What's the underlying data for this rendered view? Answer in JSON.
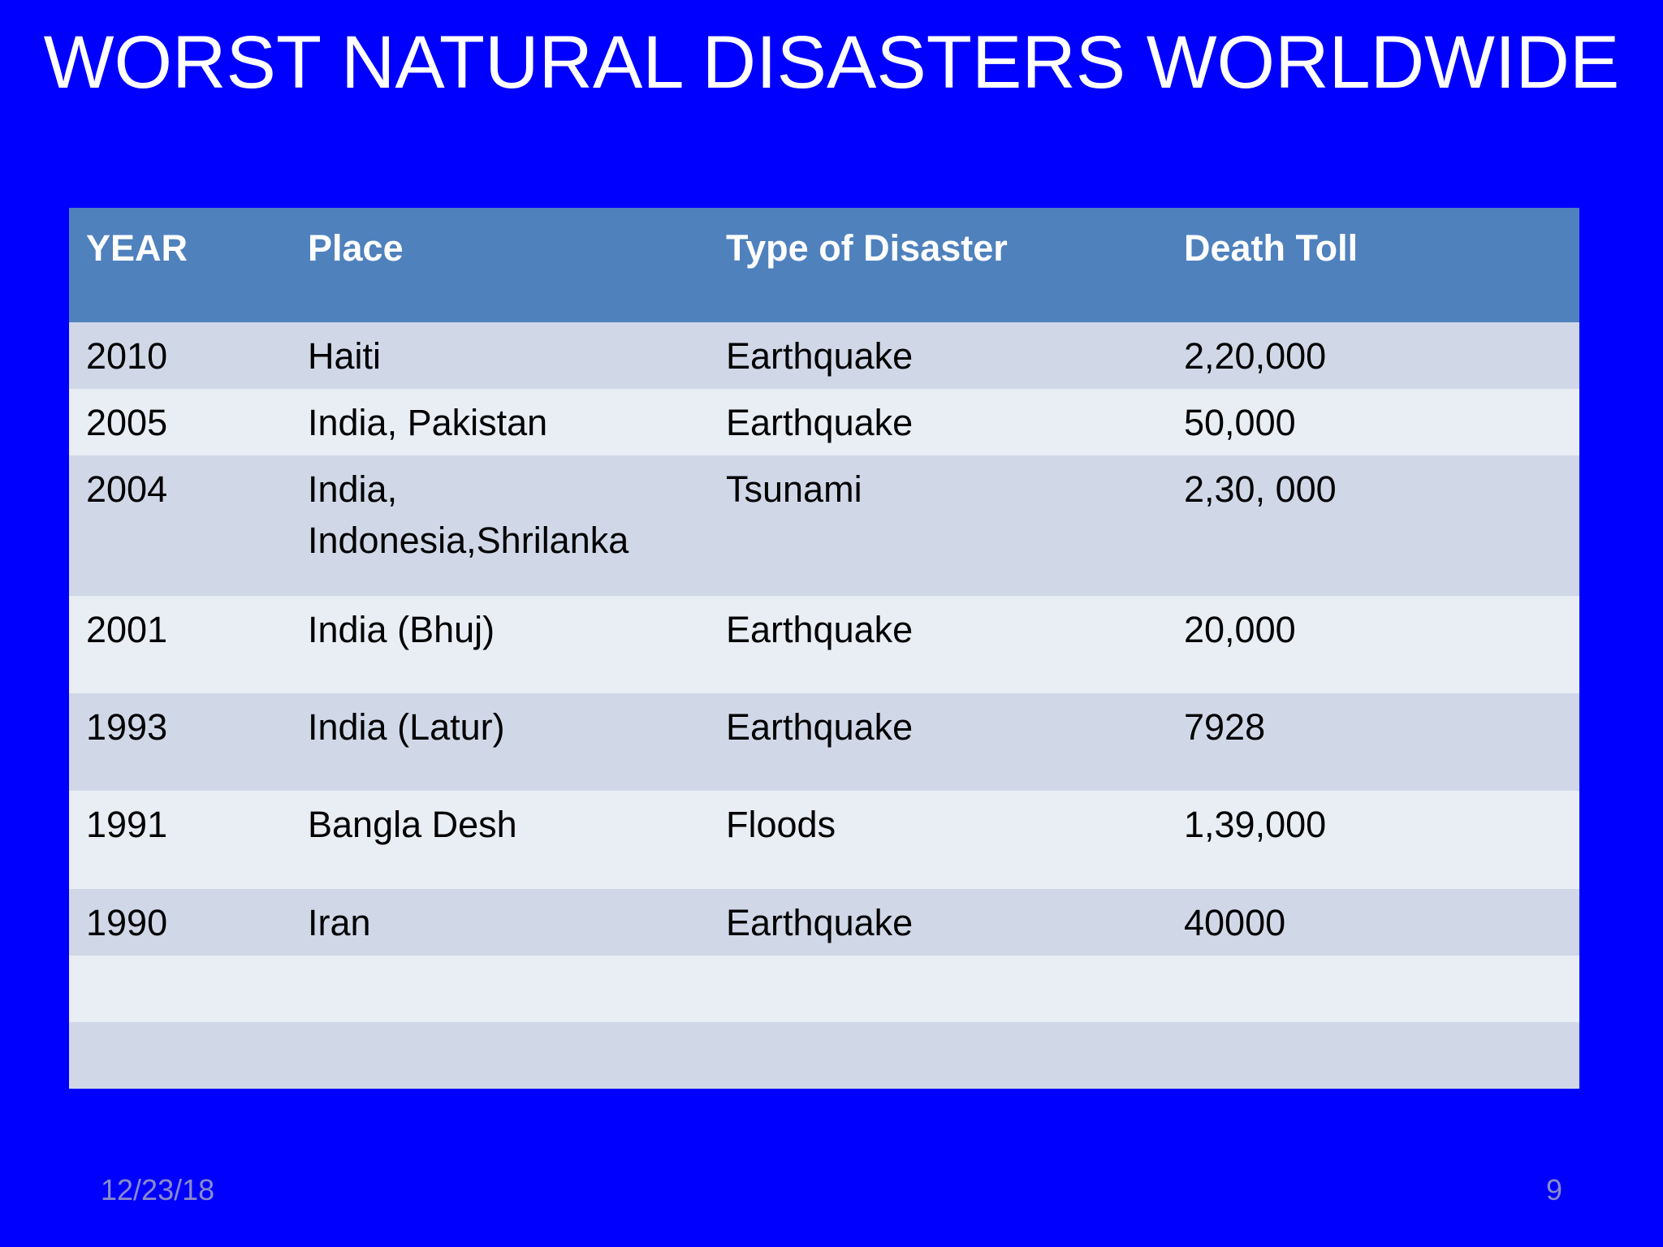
{
  "slide": {
    "title": "WORST NATURAL DISASTERS WORLDWIDE",
    "date": "12/23/18",
    "page_number": "9"
  },
  "table": {
    "headers": [
      "YEAR",
      "Place",
      "Type of Disaster",
      "Death Toll"
    ],
    "rows": [
      [
        "2010",
        "Haiti",
        "Earthquake",
        "2,20,000"
      ],
      [
        "2005",
        "India, Pakistan",
        "Earthquake",
        "50,000"
      ],
      [
        "2004",
        "India, Indonesia,Shrilanka",
        "Tsunami",
        "2,30, 000"
      ],
      [
        "2001",
        "India (Bhuj)",
        "Earthquake",
        "20,000"
      ],
      [
        "1993",
        "India (Latur)",
        "Earthquake",
        "7928"
      ],
      [
        "1991",
        "Bangla Desh",
        "Floods",
        "1,39,000"
      ],
      [
        "1990",
        "Iran",
        "Earthquake",
        "40000"
      ],
      [
        "",
        "",
        "",
        ""
      ],
      [
        "",
        "",
        "",
        ""
      ]
    ]
  },
  "colors": {
    "background": "#0000ff",
    "header": "#4f81bd",
    "row_odd": "#d0d8e8",
    "row_even": "#e9edf4"
  }
}
